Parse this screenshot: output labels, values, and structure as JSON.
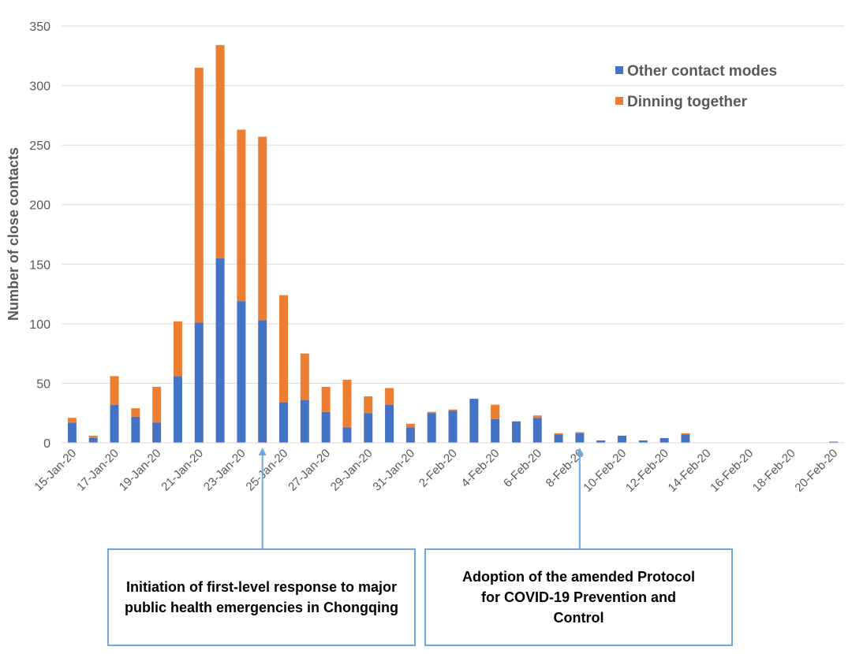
{
  "chart_data": {
    "type": "bar",
    "stacked": true,
    "ylabel": "Number of close contacts",
    "xlabel": "",
    "ylim": [
      0,
      350
    ],
    "yticks": [
      0,
      50,
      100,
      150,
      200,
      250,
      300,
      350
    ],
    "grid": "horizontal",
    "legend_position": "top-right",
    "categories": [
      "15-Jan-20",
      "16-Jan-20",
      "17-Jan-20",
      "18-Jan-20",
      "19-Jan-20",
      "20-Jan-20",
      "21-Jan-20",
      "22-Jan-20",
      "23-Jan-20",
      "24-Jan-20",
      "25-Jan-20",
      "26-Jan-20",
      "27-Jan-20",
      "28-Jan-20",
      "29-Jan-20",
      "30-Jan-20",
      "31-Jan-20",
      "1-Feb-20",
      "2-Feb-20",
      "3-Feb-20",
      "4-Feb-20",
      "5-Feb-20",
      "6-Feb-20",
      "7-Feb-20",
      "8-Feb-20",
      "9-Feb-20",
      "10-Feb-20",
      "11-Feb-20",
      "12-Feb-20",
      "13-Feb-20",
      "14-Feb-20",
      "15-Feb-20",
      "16-Feb-20",
      "17-Feb-20",
      "18-Feb-20",
      "19-Feb-20",
      "20-Feb-20"
    ],
    "shown_tick_labels": [
      "15-Jan-20",
      "17-Jan-20",
      "19-Jan-20",
      "21-Jan-20",
      "23-Jan-20",
      "25-Jan-20",
      "27-Jan-20",
      "29-Jan-20",
      "31-Jan-20",
      "2-Feb-20",
      "4-Feb-20",
      "6-Feb-20",
      "8-Feb-20",
      "10-Feb-20",
      "12-Feb-20",
      "14-Feb-20",
      "16-Feb-20",
      "18-Feb-20",
      "20-Feb-20"
    ],
    "series": [
      {
        "name": "Other contact modes",
        "color": "#4472C4",
        "values": [
          17,
          4,
          32,
          22,
          17,
          56,
          101,
          155,
          119,
          103,
          34,
          36,
          26,
          13,
          25,
          32,
          13,
          25,
          27,
          37,
          20,
          18,
          21,
          7,
          8,
          2,
          6,
          2,
          4,
          7,
          0,
          0,
          0,
          0,
          0,
          0,
          1
        ]
      },
      {
        "name": "Dinning together",
        "color": "#ED7D31",
        "values": [
          4,
          2,
          24,
          7,
          30,
          46,
          214,
          179,
          144,
          154,
          90,
          39,
          21,
          40,
          14,
          14,
          3,
          1,
          1,
          0,
          12,
          0,
          2,
          1,
          1,
          0,
          0,
          0,
          0,
          1,
          0,
          0,
          0,
          0,
          0,
          0,
          0
        ]
      }
    ]
  },
  "annotations": [
    {
      "text": "Initiation of first-level response to major public health emergencies in Chongqing",
      "target": "24-Jan-20"
    },
    {
      "text": "Adoption of the amended Protocol for COVID-19 Prevention and Control",
      "target": "8-Feb-20"
    }
  ]
}
